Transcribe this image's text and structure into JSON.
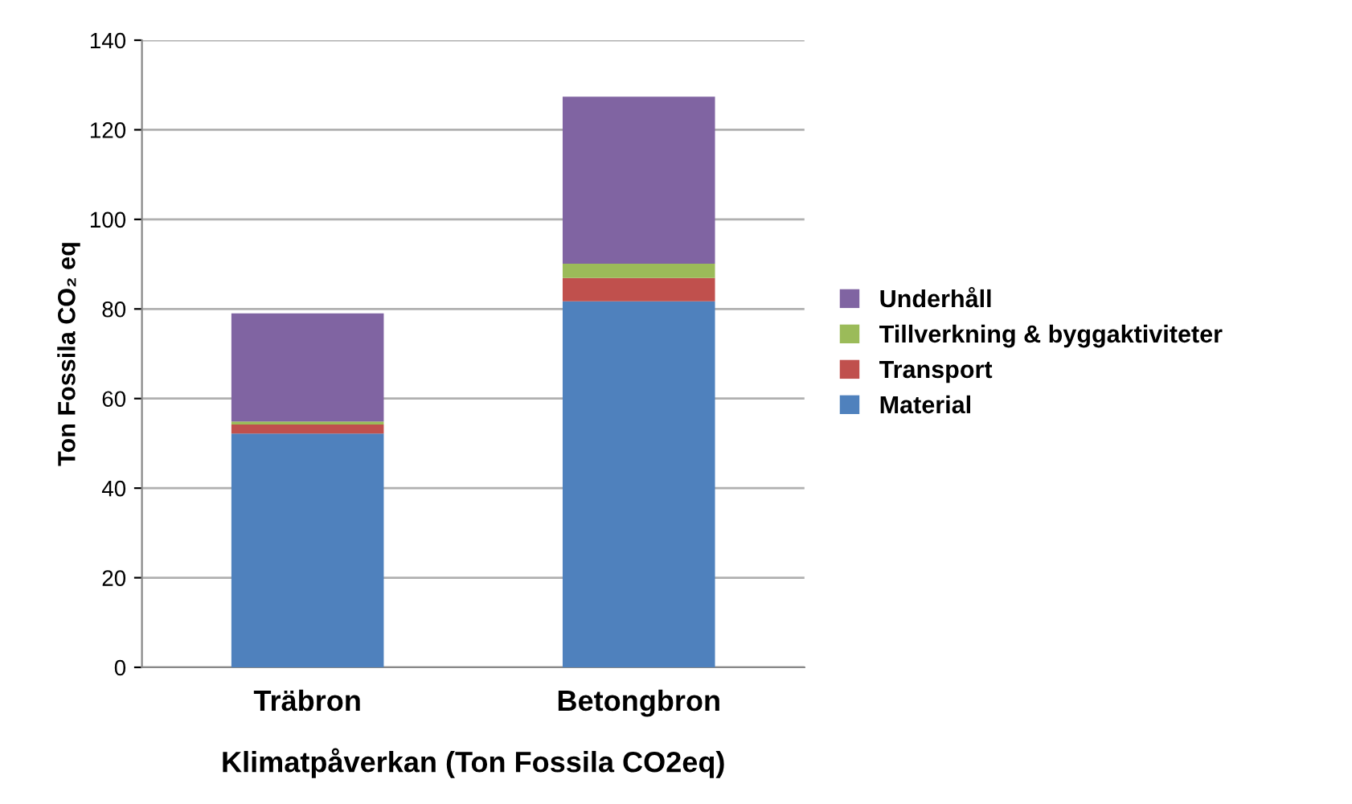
{
  "chart_data": {
    "type": "bar",
    "stacked": true,
    "categories": [
      "Träbron",
      "Betongbron"
    ],
    "xlabel": "Klimatpåverkan (Ton Fossila CO2eq)",
    "ylabel": "Ton Fossila CO₂ eq",
    "ylim": [
      0,
      140
    ],
    "yticks": [
      0,
      20,
      40,
      60,
      80,
      100,
      120,
      140
    ],
    "grid": "y",
    "legend": "right",
    "series": [
      {
        "name": "Material",
        "color": "#4f81bd",
        "values": [
          52.2,
          81.7
        ]
      },
      {
        "name": "Transport",
        "color": "#c0504d",
        "values": [
          2.0,
          5.2
        ]
      },
      {
        "name": "Tillverkning & byggaktiviteter",
        "color": "#9bbb59",
        "values": [
          0.7,
          3.2
        ]
      },
      {
        "name": "Underhåll",
        "color": "#8064a2",
        "values": [
          24.1,
          37.3
        ]
      }
    ]
  }
}
